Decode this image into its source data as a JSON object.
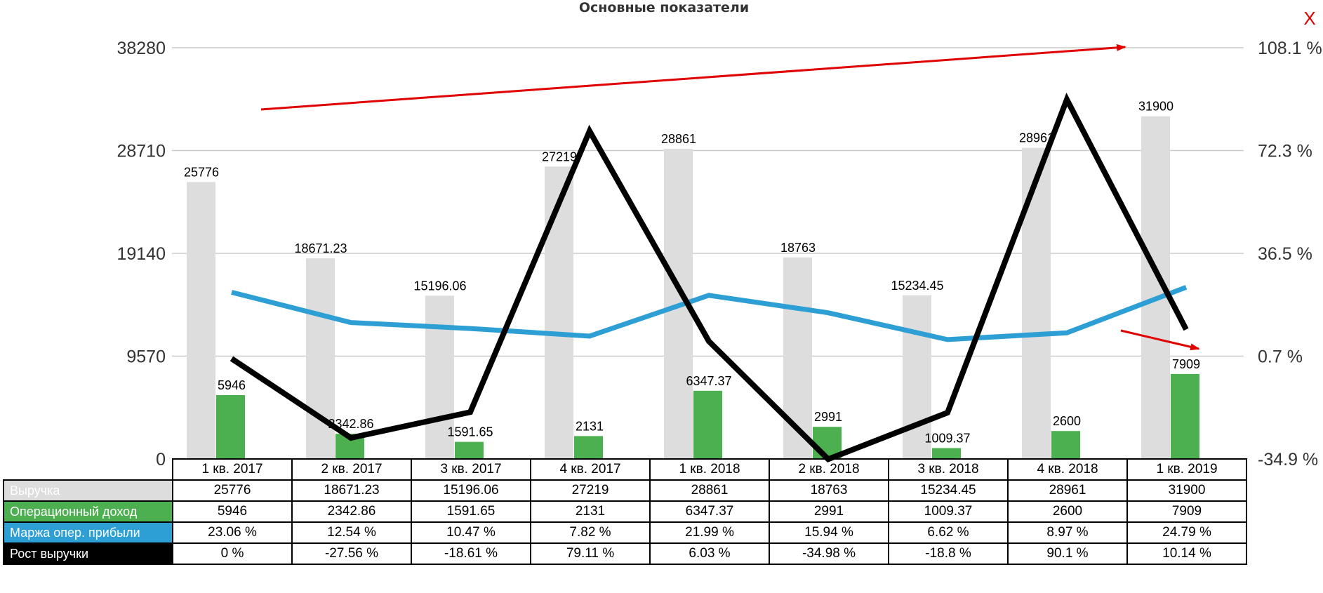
{
  "close_label": "X",
  "chart_data": {
    "type": "bar+line",
    "title": "Основные показатели",
    "categories": [
      "1 кв. 2017",
      "2 кв. 2017",
      "3 кв. 2017",
      "4 кв. 2017",
      "1 кв. 2018",
      "2 кв. 2018",
      "3 кв. 2018",
      "4 кв. 2018",
      "1 кв. 2019"
    ],
    "y_left": {
      "ticks": [
        "38280",
        "28710",
        "19140",
        "9570",
        "0"
      ],
      "range": [
        0,
        38280
      ]
    },
    "y_right": {
      "ticks": [
        "108.1 %",
        "72.3 %",
        "36.5 %",
        "0.7 %",
        "-34.9 %"
      ],
      "range": [
        -34.9,
        108.1
      ]
    },
    "grid": true,
    "series": [
      {
        "name": "Выручка",
        "type": "bar",
        "axis": "left",
        "color": "#dddddd",
        "text_color": "#ffffff",
        "values": [
          25776,
          18671.23,
          15196.06,
          27219,
          28861,
          18763,
          15234.45,
          28961,
          31900
        ],
        "labels": [
          "25776",
          "18671.23",
          "15196.06",
          "27219",
          "28861",
          "18763",
          "15234.45",
          "28961",
          "31900"
        ]
      },
      {
        "name": "Операционный доход",
        "type": "bar",
        "axis": "left",
        "color": "#4caf50",
        "text_color": "#ffffff",
        "values": [
          5946,
          2342.86,
          1591.65,
          2131,
          6347.37,
          2991,
          1009.37,
          2600,
          7909
        ],
        "labels": [
          "5946",
          "2342.86",
          "1591.65",
          "2131",
          "6347.37",
          "2991",
          "1009.37",
          "2600",
          "7909"
        ]
      },
      {
        "name": "Маржа опер. прибыли",
        "type": "line",
        "axis": "right",
        "color": "#2e9fd4",
        "text_color": "#ffffff",
        "values": [
          23.06,
          12.54,
          10.47,
          7.82,
          21.99,
          15.94,
          6.62,
          8.97,
          24.79
        ],
        "labels": [
          "23.06 %",
          "12.54 %",
          "10.47 %",
          "7.82 %",
          "21.99 %",
          "15.94 %",
          "6.62 %",
          "8.97 %",
          "24.79 %"
        ]
      },
      {
        "name": "Рост выручки",
        "type": "line",
        "axis": "right",
        "color": "#000000",
        "text_color": "#ffffff",
        "values": [
          0,
          -27.56,
          -18.61,
          79.11,
          6.03,
          -34.98,
          -18.8,
          90.1,
          10.14
        ],
        "labels": [
          "0 %",
          "-27.56 %",
          "-18.61 %",
          "79.11 %",
          "6.03 %",
          "-34.98 %",
          "-18.8 %",
          "90.1 %",
          "10.14 %"
        ]
      }
    ],
    "annotations": [
      {
        "type": "arrow",
        "color": "#e00000",
        "meaning": "upward trend of revenue"
      },
      {
        "type": "arrow",
        "color": "#e00000",
        "meaning": "points at operating income of 1 кв. 2019"
      }
    ]
  }
}
